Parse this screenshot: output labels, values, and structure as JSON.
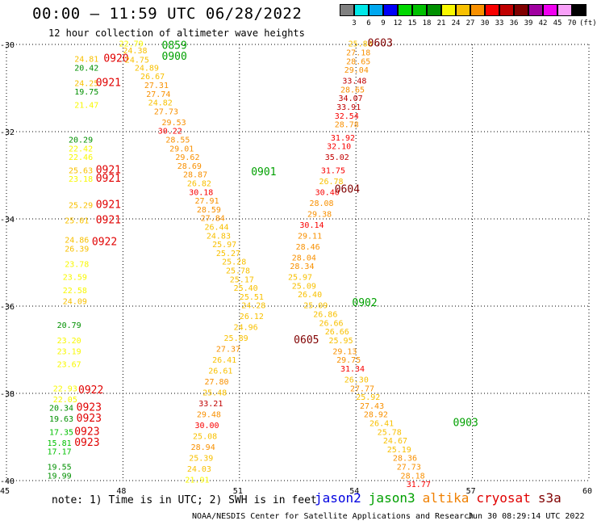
{
  "title": "00:00 – 11:59 UTC 06/28/2022",
  "subtitle": "12 hour collection of altimeter wave heights",
  "legend": {
    "colors": [
      "#808080",
      "#00e8e8",
      "#00a8f0",
      "#0000f8",
      "#00d800",
      "#00c000",
      "#009000",
      "#f8f800",
      "#f8c000",
      "#f89000",
      "#f80000",
      "#c00000",
      "#800000",
      "#a000a0",
      "#f000f0",
      "#f8a0f8",
      "#000000"
    ],
    "labels": [
      "3",
      "6",
      "9",
      "12",
      "15",
      "18",
      "21",
      "24",
      "27",
      "30",
      "33",
      "36",
      "39",
      "42",
      "45",
      "70",
      "(ft)"
    ]
  },
  "axes": {
    "x_ticks": [
      "45",
      "48",
      "51",
      "54",
      "57",
      "60"
    ],
    "y_ticks": [
      "-30",
      "-32",
      "-34",
      "-36",
      "-38",
      "-40"
    ]
  },
  "note": "note:  1) Time is in UTC; 2) SWH is in feet",
  "satellites": [
    {
      "name": "jason2",
      "color": "#0000e0"
    },
    {
      "name": "jason3",
      "color": "#00a000"
    },
    {
      "name": "altika",
      "color": "#f08000"
    },
    {
      "name": "cryosat",
      "color": "#e00000"
    },
    {
      "name": "s3a",
      "color": "#800000"
    }
  ],
  "credit": "NOAA/NESDIS Center for Satellite Applications and Research",
  "stamp": "Jun 30 08:29:14 UTC 2022",
  "chart_data": {
    "type": "scatter",
    "xlim": [
      45,
      60
    ],
    "ylim": [
      -40,
      -30
    ],
    "grid": true,
    "values": [
      {
        "lon": 46.75,
        "lat": -30.4,
        "t": "24.81"
      },
      {
        "lon": 47.5,
        "lat": -30.4,
        "t": "0920",
        "time": true
      },
      {
        "lon": 46.75,
        "lat": -30.6,
        "t": "20.42"
      },
      {
        "lon": 46.75,
        "lat": -30.95,
        "t": "24.25"
      },
      {
        "lon": 47.3,
        "lat": -30.95,
        "t": "0921",
        "time": true
      },
      {
        "lon": 46.75,
        "lat": -31.15,
        "t": "19.75"
      },
      {
        "lon": 46.75,
        "lat": -31.45,
        "t": "21.47"
      },
      {
        "lon": 46.6,
        "lat": -32.25,
        "t": "20.29"
      },
      {
        "lon": 46.6,
        "lat": -32.45,
        "t": "22.42"
      },
      {
        "lon": 46.6,
        "lat": -32.65,
        "t": "22.46"
      },
      {
        "lon": 46.6,
        "lat": -32.95,
        "t": "25.63"
      },
      {
        "lon": 47.3,
        "lat": -32.95,
        "t": "0921",
        "time": true
      },
      {
        "lon": 46.6,
        "lat": -33.15,
        "t": "23.18"
      },
      {
        "lon": 47.3,
        "lat": -33.15,
        "t": "0921",
        "time": true
      },
      {
        "lon": 46.6,
        "lat": -33.75,
        "t": "25.29"
      },
      {
        "lon": 47.3,
        "lat": -33.75,
        "t": "0921",
        "time": true
      },
      {
        "lon": 46.5,
        "lat": -34.1,
        "t": "25.01"
      },
      {
        "lon": 47.3,
        "lat": -34.1,
        "t": "0921",
        "time": true
      },
      {
        "lon": 46.5,
        "lat": -34.55,
        "t": "24.86"
      },
      {
        "lon": 47.2,
        "lat": -34.6,
        "t": "0922",
        "time": true
      },
      {
        "lon": 46.5,
        "lat": -34.75,
        "t": "26.39"
      },
      {
        "lon": 46.5,
        "lat": -35.1,
        "t": "23.78"
      },
      {
        "lon": 46.45,
        "lat": -35.4,
        "t": "23.59"
      },
      {
        "lon": 46.45,
        "lat": -35.7,
        "t": "22.58"
      },
      {
        "lon": 46.45,
        "lat": -35.95,
        "t": "24.09"
      },
      {
        "lon": 46.3,
        "lat": -36.5,
        "t": "20.79"
      },
      {
        "lon": 46.3,
        "lat": -36.85,
        "t": "23.20"
      },
      {
        "lon": 46.3,
        "lat": -37.1,
        "t": "23.19"
      },
      {
        "lon": 46.3,
        "lat": -37.4,
        "t": "23.67"
      },
      {
        "lon": 46.2,
        "lat": -37.95,
        "t": "22.93"
      },
      {
        "lon": 46.2,
        "lat": -38.2,
        "t": "22.05"
      },
      {
        "lon": 46.85,
        "lat": -38.0,
        "t": "0922",
        "time": true
      },
      {
        "lon": 46.1,
        "lat": -38.4,
        "t": "20.34"
      },
      {
        "lon": 46.8,
        "lat": -38.4,
        "t": "0923",
        "time": true
      },
      {
        "lon": 46.1,
        "lat": -38.65,
        "t": "19.63"
      },
      {
        "lon": 46.8,
        "lat": -38.65,
        "t": "0923",
        "time": true
      },
      {
        "lon": 46.1,
        "lat": -38.95,
        "t": "17.35"
      },
      {
        "lon": 46.75,
        "lat": -38.95,
        "t": "0923",
        "time": true
      },
      {
        "lon": 46.05,
        "lat": -39.2,
        "t": "15.81"
      },
      {
        "lon": 46.75,
        "lat": -39.2,
        "t": "0923",
        "time": true
      },
      {
        "lon": 46.05,
        "lat": -39.4,
        "t": "17.17"
      },
      {
        "lon": 46.05,
        "lat": -39.75,
        "t": "19.55"
      },
      {
        "lon": 46.05,
        "lat": -39.95,
        "t": "19.99"
      },
      {
        "lon": 47.9,
        "lat": -30.05,
        "t": "22.79"
      },
      {
        "lon": 48.0,
        "lat": -30.2,
        "t": "24.38"
      },
      {
        "lon": 48.05,
        "lat": -30.42,
        "t": "24.75"
      },
      {
        "lon": 48.3,
        "lat": -30.6,
        "t": "24.89"
      },
      {
        "lon": 48.45,
        "lat": -30.8,
        "t": "26.67"
      },
      {
        "lon": 48.55,
        "lat": -31.0,
        "t": "27.31"
      },
      {
        "lon": 48.6,
        "lat": -31.2,
        "t": "27.74"
      },
      {
        "lon": 48.65,
        "lat": -31.4,
        "t": "24.82"
      },
      {
        "lon": 48.8,
        "lat": -31.6,
        "t": "27.73"
      },
      {
        "lon": 49.0,
        "lat": -31.85,
        "t": "29.53"
      },
      {
        "lon": 48.9,
        "lat": -32.05,
        "t": "30.22"
      },
      {
        "lon": 49.1,
        "lat": -32.25,
        "t": "28.55"
      },
      {
        "lon": 49.2,
        "lat": -32.45,
        "t": "29.01"
      },
      {
        "lon": 49.35,
        "lat": -32.65,
        "t": "29.62"
      },
      {
        "lon": 49.4,
        "lat": -32.85,
        "t": "28.69"
      },
      {
        "lon": 49.55,
        "lat": -33.05,
        "t": "28.87"
      },
      {
        "lon": 49.65,
        "lat": -33.25,
        "t": "26.82"
      },
      {
        "lon": 49.7,
        "lat": -33.45,
        "t": "30.18"
      },
      {
        "lon": 49.85,
        "lat": -33.65,
        "t": "27.91"
      },
      {
        "lon": 49.9,
        "lat": -33.85,
        "t": "28.59"
      },
      {
        "lon": 50.0,
        "lat": -34.05,
        "t": "27.84"
      },
      {
        "lon": 50.1,
        "lat": -34.25,
        "t": "26.44"
      },
      {
        "lon": 50.15,
        "lat": -34.45,
        "t": "24.83"
      },
      {
        "lon": 50.3,
        "lat": -34.65,
        "t": "25.97"
      },
      {
        "lon": 50.4,
        "lat": -34.85,
        "t": "25.27"
      },
      {
        "lon": 50.55,
        "lat": -35.05,
        "t": "25.28"
      },
      {
        "lon": 50.65,
        "lat": -35.25,
        "t": "25.78"
      },
      {
        "lon": 50.75,
        "lat": -35.45,
        "t": "25.17"
      },
      {
        "lon": 50.85,
        "lat": -35.65,
        "t": "25.40"
      },
      {
        "lon": 51.0,
        "lat": -35.85,
        "t": "25.51"
      },
      {
        "lon": 51.05,
        "lat": -36.05,
        "t": "24.28"
      },
      {
        "lon": 51.0,
        "lat": -36.3,
        "t": "26.12"
      },
      {
        "lon": 50.85,
        "lat": -36.55,
        "t": "24.96"
      },
      {
        "lon": 50.6,
        "lat": -36.8,
        "t": "25.89"
      },
      {
        "lon": 50.4,
        "lat": -37.05,
        "t": "27.37"
      },
      {
        "lon": 50.3,
        "lat": -37.3,
        "t": "26.41"
      },
      {
        "lon": 50.2,
        "lat": -37.55,
        "t": "26.61"
      },
      {
        "lon": 50.1,
        "lat": -37.8,
        "t": "27.80"
      },
      {
        "lon": 50.05,
        "lat": -38.05,
        "t": "25.48"
      },
      {
        "lon": 49.95,
        "lat": -38.3,
        "t": "33.21"
      },
      {
        "lon": 49.9,
        "lat": -38.55,
        "t": "29.48"
      },
      {
        "lon": 49.85,
        "lat": -38.8,
        "t": "30.00"
      },
      {
        "lon": 49.8,
        "lat": -39.05,
        "t": "25.08"
      },
      {
        "lon": 49.75,
        "lat": -39.3,
        "t": "28.94"
      },
      {
        "lon": 49.7,
        "lat": -39.55,
        "t": "25.39"
      },
      {
        "lon": 49.65,
        "lat": -39.8,
        "t": "24.03"
      },
      {
        "lon": 49.6,
        "lat": -40.05,
        "t": "21.91"
      },
      {
        "lon": 49.0,
        "lat": -30.1,
        "t": "0859",
        "time": true
      },
      {
        "lon": 49.0,
        "lat": -30.35,
        "t": "0900",
        "time": true
      },
      {
        "lon": 51.3,
        "lat": -33.0,
        "t": "0901",
        "time": true
      },
      {
        "lon": 53.9,
        "lat": -36.0,
        "t": "0902",
        "time": true
      },
      {
        "lon": 56.5,
        "lat": -38.75,
        "t": "0903",
        "time": true
      },
      {
        "lon": 53.8,
        "lat": -30.05,
        "t": "25.88"
      },
      {
        "lon": 53.75,
        "lat": -30.25,
        "t": "27.18"
      },
      {
        "lon": 53.75,
        "lat": -30.45,
        "t": "28.65"
      },
      {
        "lon": 53.7,
        "lat": -30.65,
        "t": "29.04"
      },
      {
        "lon": 53.65,
        "lat": -30.9,
        "t": "33.48"
      },
      {
        "lon": 53.6,
        "lat": -31.1,
        "t": "28.65"
      },
      {
        "lon": 53.55,
        "lat": -31.3,
        "t": "34.07"
      },
      {
        "lon": 53.5,
        "lat": -31.5,
        "t": "33.91"
      },
      {
        "lon": 53.45,
        "lat": -31.7,
        "t": "32.54"
      },
      {
        "lon": 53.45,
        "lat": -31.9,
        "t": "28.78"
      },
      {
        "lon": 53.35,
        "lat": -32.2,
        "t": "31.92"
      },
      {
        "lon": 53.25,
        "lat": -32.4,
        "t": "32.10"
      },
      {
        "lon": 53.2,
        "lat": -32.65,
        "t": "35.02"
      },
      {
        "lon": 53.1,
        "lat": -32.95,
        "t": "31.75"
      },
      {
        "lon": 53.05,
        "lat": -33.2,
        "t": "26.78"
      },
      {
        "lon": 52.95,
        "lat": -33.45,
        "t": "30.40"
      },
      {
        "lon": 52.8,
        "lat": -33.7,
        "t": "28.08"
      },
      {
        "lon": 52.75,
        "lat": -33.95,
        "t": "29.38"
      },
      {
        "lon": 52.55,
        "lat": -34.2,
        "t": "30.14"
      },
      {
        "lon": 52.5,
        "lat": -34.45,
        "t": "29.11"
      },
      {
        "lon": 52.45,
        "lat": -34.7,
        "t": "28.46"
      },
      {
        "lon": 52.35,
        "lat": -34.95,
        "t": "28.04"
      },
      {
        "lon": 52.3,
        "lat": -35.15,
        "t": "28.34"
      },
      {
        "lon": 52.25,
        "lat": -35.4,
        "t": "25.97"
      },
      {
        "lon": 52.35,
        "lat": -35.6,
        "t": "25.09"
      },
      {
        "lon": 52.5,
        "lat": -35.8,
        "t": "26.40"
      },
      {
        "lon": 52.65,
        "lat": -36.05,
        "t": "25.09"
      },
      {
        "lon": 52.9,
        "lat": -36.25,
        "t": "26.86"
      },
      {
        "lon": 53.05,
        "lat": -36.45,
        "t": "26.66"
      },
      {
        "lon": 53.2,
        "lat": -36.65,
        "t": "26.66"
      },
      {
        "lon": 53.3,
        "lat": -36.85,
        "t": "25.95"
      },
      {
        "lon": 53.4,
        "lat": -37.1,
        "t": "29.13"
      },
      {
        "lon": 53.5,
        "lat": -37.3,
        "t": "29.75"
      },
      {
        "lon": 53.6,
        "lat": -37.5,
        "t": "31.34"
      },
      {
        "lon": 53.7,
        "lat": -37.75,
        "t": "26.30"
      },
      {
        "lon": 53.85,
        "lat": -37.95,
        "t": "27.77"
      },
      {
        "lon": 54.0,
        "lat": -38.15,
        "t": "25.92"
      },
      {
        "lon": 54.1,
        "lat": -38.35,
        "t": "27.43"
      },
      {
        "lon": 54.2,
        "lat": -38.55,
        "t": "28.92"
      },
      {
        "lon": 54.35,
        "lat": -38.75,
        "t": "26.41"
      },
      {
        "lon": 54.55,
        "lat": -38.95,
        "t": "25.78"
      },
      {
        "lon": 54.7,
        "lat": -39.15,
        "t": "24.67"
      },
      {
        "lon": 54.8,
        "lat": -39.35,
        "t": "25.19"
      },
      {
        "lon": 54.95,
        "lat": -39.55,
        "t": "28.36"
      },
      {
        "lon": 55.05,
        "lat": -39.75,
        "t": "27.73"
      },
      {
        "lon": 55.15,
        "lat": -39.95,
        "t": "28.18"
      },
      {
        "lon": 55.3,
        "lat": -40.15,
        "t": "31.77"
      },
      {
        "lon": 54.3,
        "lat": -30.05,
        "t": "0603",
        "time": true
      },
      {
        "lon": 53.45,
        "lat": -33.4,
        "t": "0604",
        "time": true
      },
      {
        "lon": 52.4,
        "lat": -36.85,
        "t": "0605",
        "time": true
      }
    ]
  }
}
